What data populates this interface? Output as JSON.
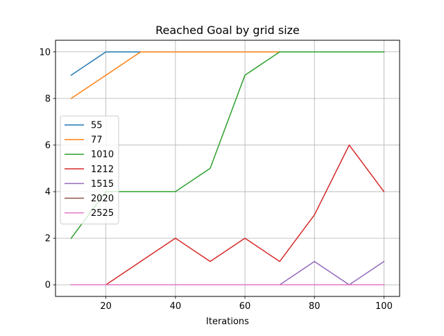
{
  "chart_data": {
    "type": "line",
    "title": "Reached Goal by grid size",
    "xlabel": "Iterations",
    "ylabel": "",
    "xlim": [
      5.5,
      104.5
    ],
    "ylim": [
      -0.5,
      10.5
    ],
    "xticks": [
      20,
      40,
      60,
      80,
      100
    ],
    "yticks": [
      0,
      2,
      4,
      6,
      8,
      10
    ],
    "grid": true,
    "legend_position": "center-left",
    "x": [
      10,
      20,
      30,
      40,
      50,
      60,
      70,
      80,
      90,
      100
    ],
    "series": [
      {
        "name": "55",
        "color": "#1f77b4",
        "values": [
          9,
          10,
          10,
          10,
          10,
          10,
          10,
          10,
          10,
          10
        ]
      },
      {
        "name": "77",
        "color": "#ff7f0e",
        "values": [
          8,
          9,
          10,
          10,
          10,
          10,
          10,
          10,
          10,
          10
        ]
      },
      {
        "name": "1010",
        "color": "#2ca02c",
        "values": [
          2,
          4,
          4,
          4,
          5,
          9,
          10,
          10,
          10,
          10
        ]
      },
      {
        "name": "1212",
        "color": "#d62728",
        "values": [
          0,
          0,
          1,
          2,
          1,
          2,
          1,
          3,
          6,
          4
        ]
      },
      {
        "name": "1515",
        "color": "#9467bd",
        "values": [
          0,
          0,
          0,
          0,
          0,
          0,
          0,
          1,
          0,
          1
        ]
      },
      {
        "name": "2020",
        "color": "#8c564b",
        "values": [
          0,
          0,
          0,
          0,
          0,
          0,
          0,
          0,
          0,
          0
        ]
      },
      {
        "name": "2525",
        "color": "#e377c2",
        "values": [
          0,
          0,
          0,
          0,
          0,
          0,
          0,
          0,
          0,
          0
        ]
      }
    ]
  }
}
